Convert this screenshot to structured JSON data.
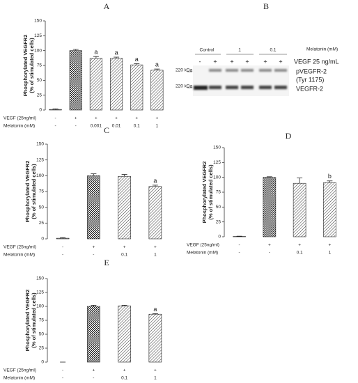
{
  "chart_data": [
    {
      "type": "bar",
      "title": "A",
      "ylabel": [
        "Phosphorylated  VEGFR2",
        "(% of stimulated cells)"
      ],
      "values": [
        1,
        100,
        87,
        87,
        76,
        67
      ],
      "errors": [
        1,
        2,
        3,
        2,
        2,
        2
      ],
      "letters": [
        null,
        null,
        "a",
        "a",
        "a",
        "a"
      ],
      "patterns": [
        "diagonal",
        "checker",
        "diagonal",
        "diagonal",
        "diagonal",
        "diagonal"
      ],
      "ylim": [
        0,
        150
      ],
      "yticks": [
        0,
        25,
        50,
        75,
        100,
        125,
        150
      ],
      "rows": [
        {
          "label": "VEGF (25ng/ml)",
          "values": [
            "-",
            "+",
            "+",
            "+",
            "+",
            "+"
          ]
        },
        {
          "label": "Melatonin (mM)",
          "values": [
            "-",
            "-",
            "0.001",
            "0.01",
            "0.1",
            "1"
          ]
        }
      ]
    },
    {
      "type": "bar",
      "title": "C",
      "ylabel": [
        "Phosphorylated  VEGFR2",
        "(% of stimulated cells)"
      ],
      "values": [
        1,
        100,
        99,
        83
      ],
      "errors": [
        1,
        3,
        3,
        2
      ],
      "letters": [
        null,
        null,
        null,
        "a"
      ],
      "patterns": [
        "diagonal",
        "checker",
        "diagonal",
        "diagonal"
      ],
      "ylim": [
        0,
        150
      ],
      "yticks": [
        0,
        25,
        50,
        75,
        100,
        125,
        150
      ],
      "rows": [
        {
          "label": "VEGF (25ng/ml)",
          "values": [
            "-",
            "+",
            "+",
            "+"
          ]
        },
        {
          "label": "Melatonin (mM)",
          "values": [
            "-",
            "-",
            "0.1",
            "1"
          ]
        }
      ]
    },
    {
      "type": "bar",
      "title": "D",
      "ylabel": [
        "Phosphorylated  VEGFR2",
        "(% of stimulated cells)"
      ],
      "values": [
        0.5,
        100,
        90,
        91
      ],
      "errors": [
        0.5,
        1,
        9,
        3
      ],
      "letters": [
        null,
        null,
        null,
        "b"
      ],
      "patterns": [
        "diagonal",
        "checker",
        "diagonal",
        "diagonal"
      ],
      "ylim": [
        0,
        150
      ],
      "yticks": [
        0,
        25,
        50,
        75,
        100,
        125,
        150
      ],
      "rows": [
        {
          "label": "VEGF (25ng/ml)",
          "values": [
            "-",
            "+",
            "+",
            "+"
          ]
        },
        {
          "label": "Melatonin (mM)",
          "values": [
            "-",
            "-",
            "0.1",
            "1"
          ]
        }
      ]
    },
    {
      "type": "bar",
      "title": "E",
      "ylabel": [
        "Phosphorylated  VEGFR2",
        "(% of stimulated cells)"
      ],
      "values": [
        0,
        100,
        101,
        86
      ],
      "errors": [
        0,
        2,
        1,
        1
      ],
      "letters": [
        null,
        null,
        null,
        "a"
      ],
      "patterns": [
        "diagonal",
        "checker",
        "diagonal",
        "diagonal"
      ],
      "ylim": [
        0,
        150
      ],
      "yticks": [
        0,
        25,
        50,
        75,
        100,
        125,
        150
      ],
      "rows": [
        {
          "label": "VEGF (25ng/ml)",
          "values": [
            "-",
            "+",
            "+",
            "+"
          ]
        },
        {
          "label": "Melatonin (mM)",
          "values": [
            "-",
            "-",
            "0.1",
            "1"
          ]
        }
      ]
    }
  ],
  "blot": {
    "title": "B",
    "groups": [
      "Control",
      "1",
      "0.1"
    ],
    "group_label": "Melatonin (mM)",
    "vegf": [
      "-",
      "+",
      "+",
      "+",
      "+",
      "+"
    ],
    "vegf_label": "VEGF 25 ng/mL",
    "markers": [
      "220 kDa",
      "220 kDa"
    ],
    "bands": [
      "pVEGFR-2",
      "(Tyr 1175)",
      "VEGFR-2"
    ]
  }
}
